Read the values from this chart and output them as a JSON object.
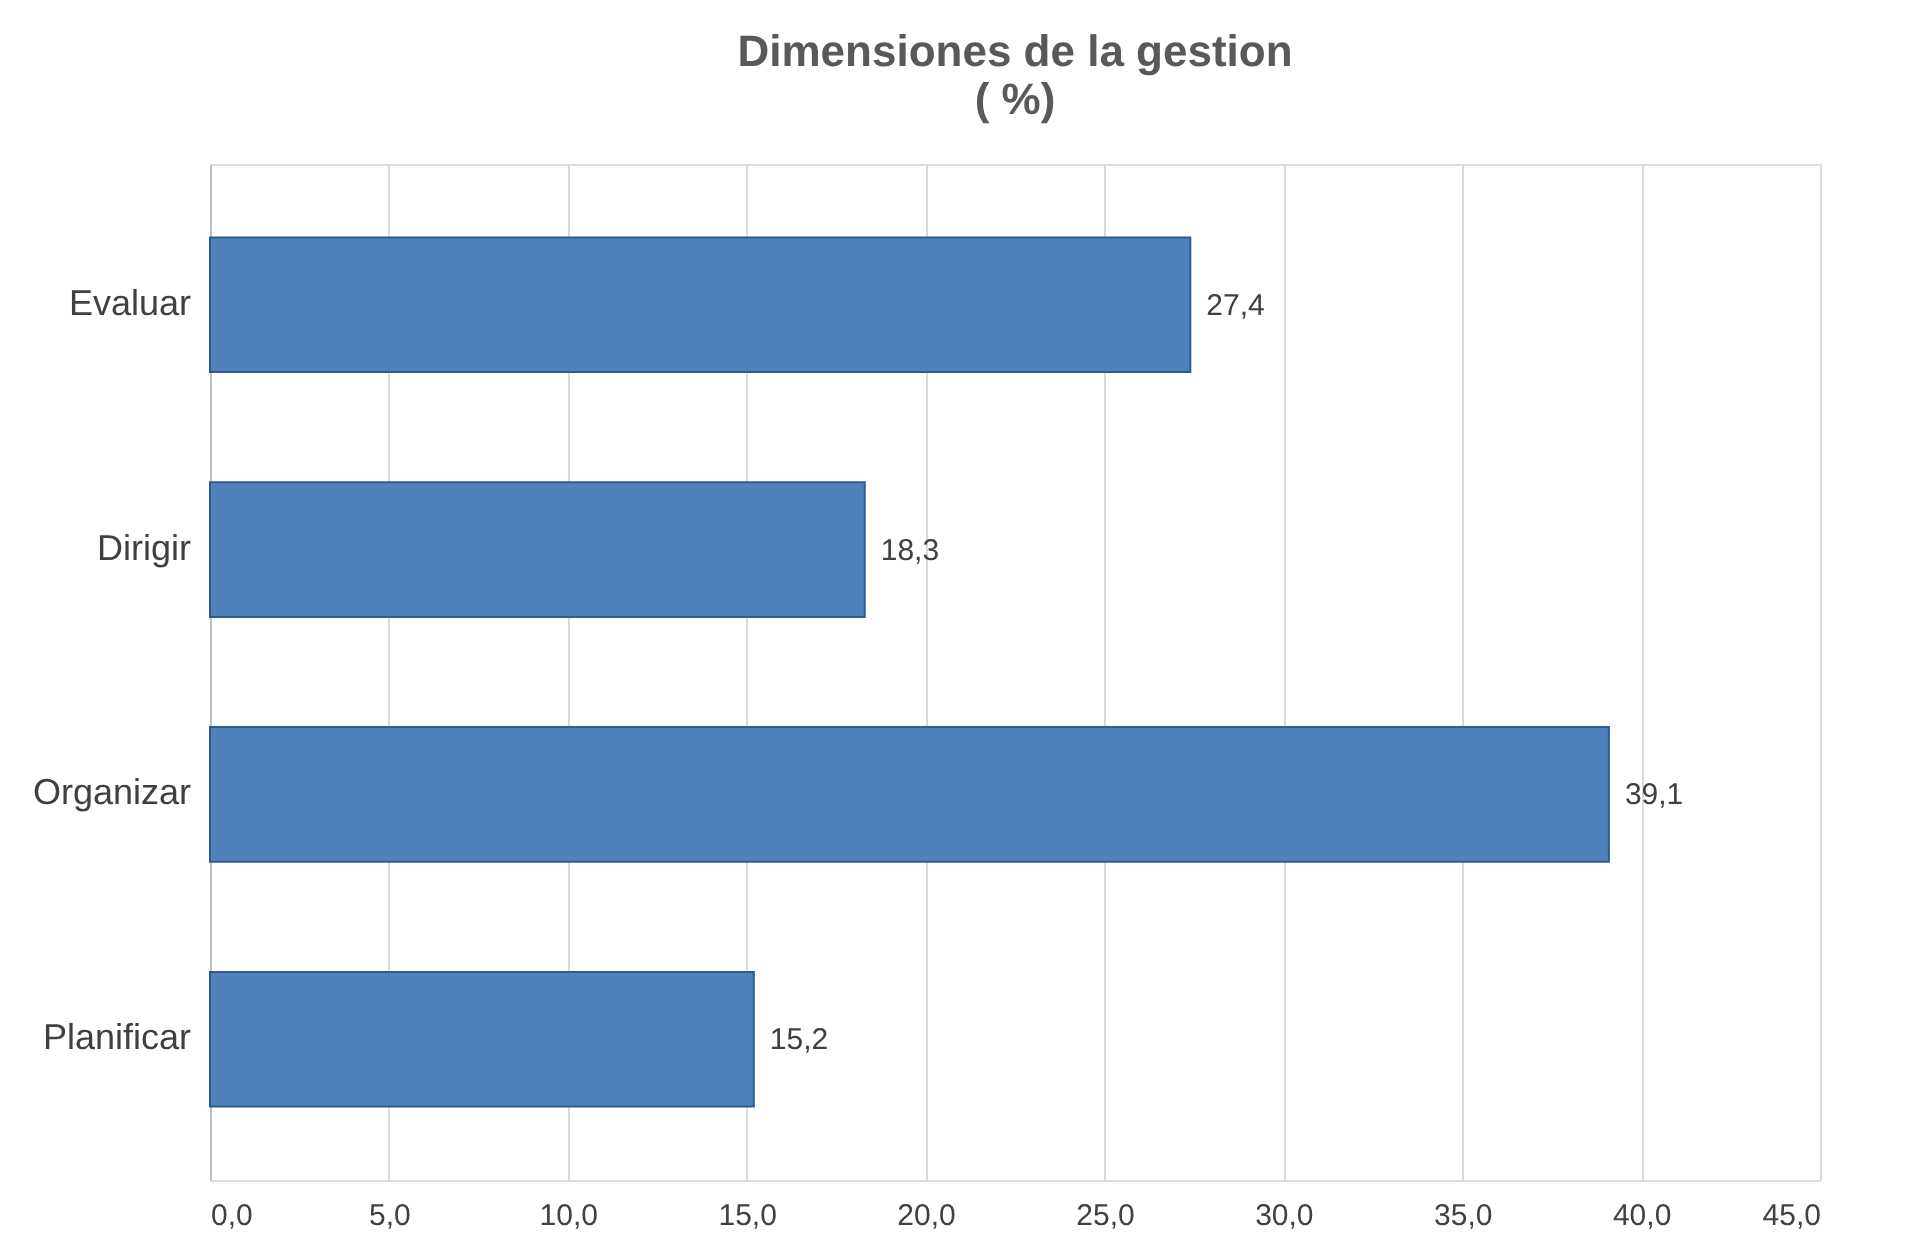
{
  "chart_data": {
    "type": "bar",
    "orientation": "horizontal",
    "title": "Dimensiones de la gestion\n( %)",
    "categories": [
      "Evaluar",
      "Dirigir",
      "Organizar",
      "Planificar"
    ],
    "values": [
      27.4,
      18.3,
      39.1,
      15.2
    ],
    "value_labels": [
      "27,4",
      "18,3",
      "39,1",
      "15,2"
    ],
    "color": "#4f81bd",
    "xlim": [
      0,
      45
    ],
    "xticks": [
      {
        "value": 0,
        "label": "0,0"
      },
      {
        "value": 5,
        "label": "5,0"
      },
      {
        "value": 10,
        "label": "10,0"
      },
      {
        "value": 15,
        "label": "15,0"
      },
      {
        "value": 20,
        "label": "20,0"
      },
      {
        "value": 25,
        "label": "25,0"
      },
      {
        "value": 30,
        "label": "30,0"
      },
      {
        "value": 35,
        "label": "35,0"
      },
      {
        "value": 40,
        "label": "40,0"
      },
      {
        "value": 45,
        "label": "45,0"
      }
    ],
    "grid": "x"
  }
}
